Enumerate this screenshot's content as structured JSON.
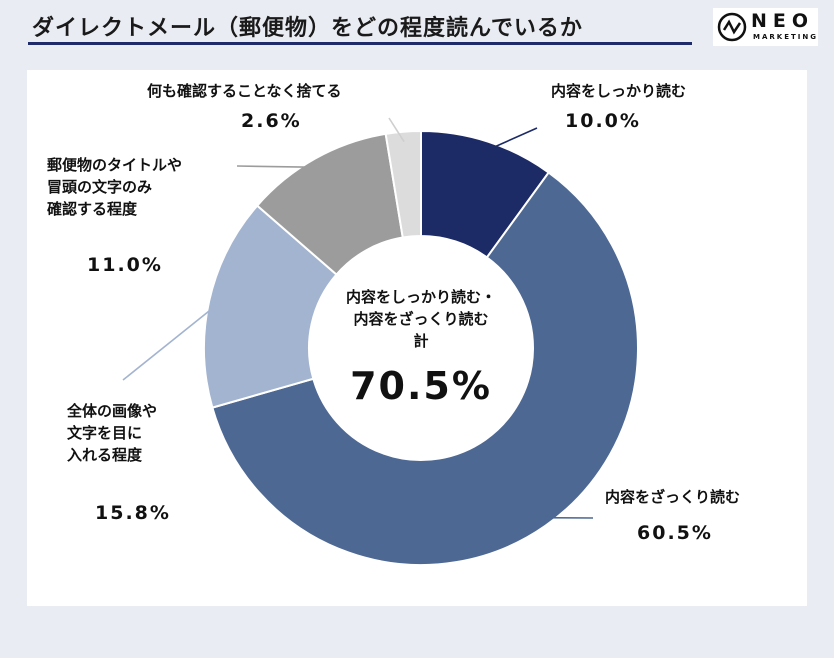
{
  "header": {
    "title": "ダイレクトメール（郵便物）をどの程度読んでいるか"
  },
  "logo": {
    "name": "NEO",
    "sub": "MARKETING"
  },
  "colors": {
    "accent": "#1f2a6b"
  },
  "chart_data": {
    "type": "pie",
    "title": "ダイレクトメール（郵便物）をどの程度読んでいるか",
    "unit": "%",
    "center_label": "内容をしっかり読む・\n内容をざっくり読む\n計",
    "center_value": "70.5%",
    "slices": [
      {
        "label": "内容をしっかり読む",
        "value": 10.0,
        "display": "10.0%",
        "color": "#1c2a66"
      },
      {
        "label": "内容をざっくり読む",
        "value": 60.5,
        "display": "60.5%",
        "color": "#4d6893"
      },
      {
        "label": "全体の画像や\n文字を目に\n入れる程度",
        "value": 15.8,
        "display": "15.8%",
        "color": "#a3b4d0"
      },
      {
        "label": "郵便物のタイトルや\n冒頭の文字のみ\n確認する程度",
        "value": 11.0,
        "display": "11.0%",
        "color": "#9c9c9c"
      },
      {
        "label": "何も確認することなく捨てる",
        "value": 2.6,
        "display": "2.6%",
        "color": "#dcdcdc"
      }
    ]
  }
}
